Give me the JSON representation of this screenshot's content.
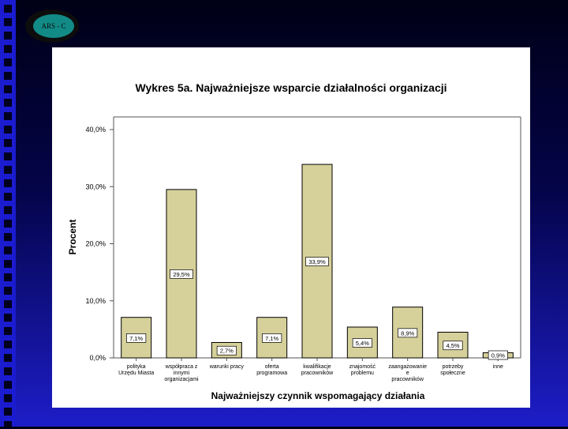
{
  "logo": {
    "text": "ARS - C"
  },
  "chart_data": {
    "type": "bar",
    "title": "Wykres 5a. Najważniejsze wsparcie działalności organizacji",
    "xlabel": "Najważniejszy czynnik wspomagający działania",
    "ylabel": "Procent",
    "ylim": [
      0,
      40
    ],
    "yticks": [
      "0,0%",
      "10,0%",
      "20,0%",
      "30,0%",
      "40,0%"
    ],
    "categories": [
      [
        "polityka",
        "Urzędu Miasta"
      ],
      [
        "współpraca z",
        "innymi",
        "organizacjami"
      ],
      [
        "warunki pracy"
      ],
      [
        "oferta",
        "programowa"
      ],
      [
        "kwalifikacje",
        "pracowników"
      ],
      [
        "znajomość",
        "problemu"
      ],
      [
        "zaangażowanie",
        "e",
        "pracowników"
      ],
      [
        "potrzeby",
        "społeczne"
      ],
      [
        "inne"
      ]
    ],
    "values": [
      7.1,
      29.5,
      2.7,
      7.1,
      33.9,
      5.4,
      8.9,
      4.5,
      0.9
    ],
    "labels": [
      "7,1%",
      "29,5%",
      "2,7%",
      "7,1%",
      "33,9%",
      "5,4%",
      "8,9%",
      "4,5%",
      "0,9%"
    ],
    "colors": {
      "bar": "#d6d09a",
      "bar_stroke": "#000000"
    }
  }
}
